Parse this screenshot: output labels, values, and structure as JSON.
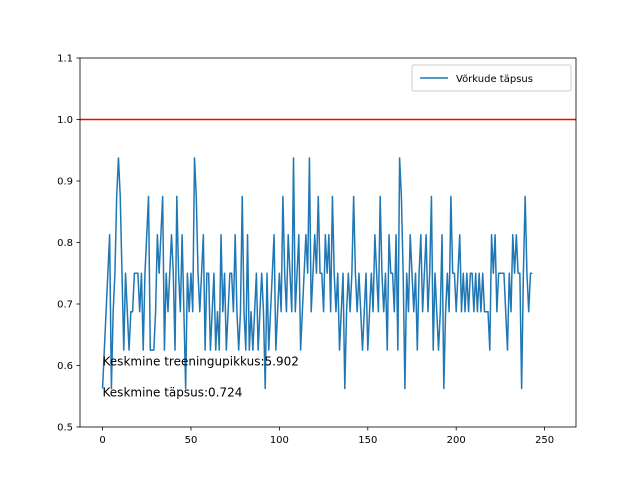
{
  "chart_data": {
    "type": "line",
    "title": "",
    "xlabel": "",
    "ylabel": "",
    "xlim": [
      -12.75,
      267.75
    ],
    "ylim": [
      0.5,
      1.1
    ],
    "x_ticks": [
      0,
      50,
      100,
      150,
      200,
      250
    ],
    "y_ticks": [
      0.5,
      0.6,
      0.7,
      0.8,
      0.9,
      1.0,
      1.1
    ],
    "x_tick_labels": [
      "0",
      "50",
      "100",
      "150",
      "200",
      "250"
    ],
    "y_tick_labels": [
      "0.5",
      "0.6",
      "0.7",
      "0.8",
      "0.9",
      "1.0",
      "1.1"
    ],
    "grid": false,
    "legend": {
      "position": "upper-right",
      "entries": [
        "Võrkude täpsus"
      ]
    },
    "reference_line": {
      "y": 1.0,
      "color": "#ff0000"
    },
    "series": [
      {
        "name": "Võrkude täpsus",
        "color": "#1f77b4",
        "x_start": 0,
        "values": [
          0.5625,
          0.625,
          0.6875,
          0.75,
          0.8125,
          0.5625,
          0.6875,
          0.75,
          0.875,
          0.9375,
          0.875,
          0.75,
          0.625,
          0.75,
          0.6875,
          0.625,
          0.6875,
          0.6875,
          0.75,
          0.75,
          0.75,
          0.6875,
          0.75,
          0.625,
          0.75,
          0.8125,
          0.875,
          0.625,
          0.625,
          0.625,
          0.6875,
          0.8125,
          0.75,
          0.8125,
          0.875,
          0.625,
          0.75,
          0.6875,
          0.75,
          0.8125,
          0.75,
          0.625,
          0.875,
          0.75,
          0.6875,
          0.8125,
          0.6875,
          0.5625,
          0.75,
          0.6875,
          0.75,
          0.6875,
          0.9375,
          0.875,
          0.75,
          0.6875,
          0.75,
          0.8125,
          0.625,
          0.75,
          0.75,
          0.625,
          0.6875,
          0.75,
          0.625,
          0.6875,
          0.625,
          0.8125,
          0.6875,
          0.75,
          0.625,
          0.6875,
          0.75,
          0.75,
          0.6875,
          0.8125,
          0.6875,
          0.625,
          0.6875,
          0.875,
          0.6875,
          0.625,
          0.8125,
          0.625,
          0.6875,
          0.625,
          0.6875,
          0.75,
          0.625,
          0.6875,
          0.75,
          0.6875,
          0.5625,
          0.75,
          0.625,
          0.6875,
          0.75,
          0.8125,
          0.625,
          0.6875,
          0.75,
          0.6875,
          0.875,
          0.75,
          0.6875,
          0.8125,
          0.75,
          0.6875,
          0.9375,
          0.6875,
          0.75,
          0.8125,
          0.625,
          0.6875,
          0.75,
          0.8125,
          0.75,
          0.9375,
          0.6875,
          0.75,
          0.8125,
          0.75,
          0.875,
          0.75,
          0.75,
          0.6875,
          0.8125,
          0.75,
          0.8125,
          0.6875,
          0.875,
          0.75,
          0.6875,
          0.75,
          0.625,
          0.6875,
          0.75,
          0.5625,
          0.6875,
          0.75,
          0.6875,
          0.75,
          0.875,
          0.75,
          0.6875,
          0.75,
          0.6875,
          0.625,
          0.6875,
          0.75,
          0.625,
          0.6875,
          0.75,
          0.6875,
          0.8125,
          0.75,
          0.6875,
          0.875,
          0.75,
          0.6875,
          0.75,
          0.625,
          0.8125,
          0.75,
          0.75,
          0.6875,
          0.8125,
          0.625,
          0.9375,
          0.875,
          0.75,
          0.5625,
          0.75,
          0.6875,
          0.8125,
          0.75,
          0.6875,
          0.75,
          0.625,
          0.75,
          0.8125,
          0.6875,
          0.75,
          0.8125,
          0.6875,
          0.75,
          0.875,
          0.625,
          0.75,
          0.6875,
          0.625,
          0.6875,
          0.8125,
          0.5625,
          0.6875,
          0.75,
          0.6875,
          0.875,
          0.75,
          0.75,
          0.6875,
          0.75,
          0.8125,
          0.6875,
          0.75,
          0.6875,
          0.75,
          0.6875,
          0.75,
          0.75,
          0.6875,
          0.75,
          0.6875,
          0.75,
          0.6875,
          0.75,
          0.6875,
          0.6875,
          0.6875,
          0.625,
          0.8125,
          0.75,
          0.8125,
          0.6875,
          0.75,
          0.75,
          0.75,
          0.75,
          0.6875,
          0.625,
          0.75,
          0.6875,
          0.8125,
          0.75,
          0.8125,
          0.75,
          0.75,
          0.5625,
          0.75,
          0.875,
          0.75,
          0.6875,
          0.75,
          0.75
        ]
      }
    ],
    "annotations": [
      {
        "text": "Keskmine treeningupikkus:5.902",
        "x": 0,
        "y": 0.6
      },
      {
        "text": "Keskmine täpsus:0.724",
        "x": 0,
        "y": 0.55
      }
    ]
  }
}
